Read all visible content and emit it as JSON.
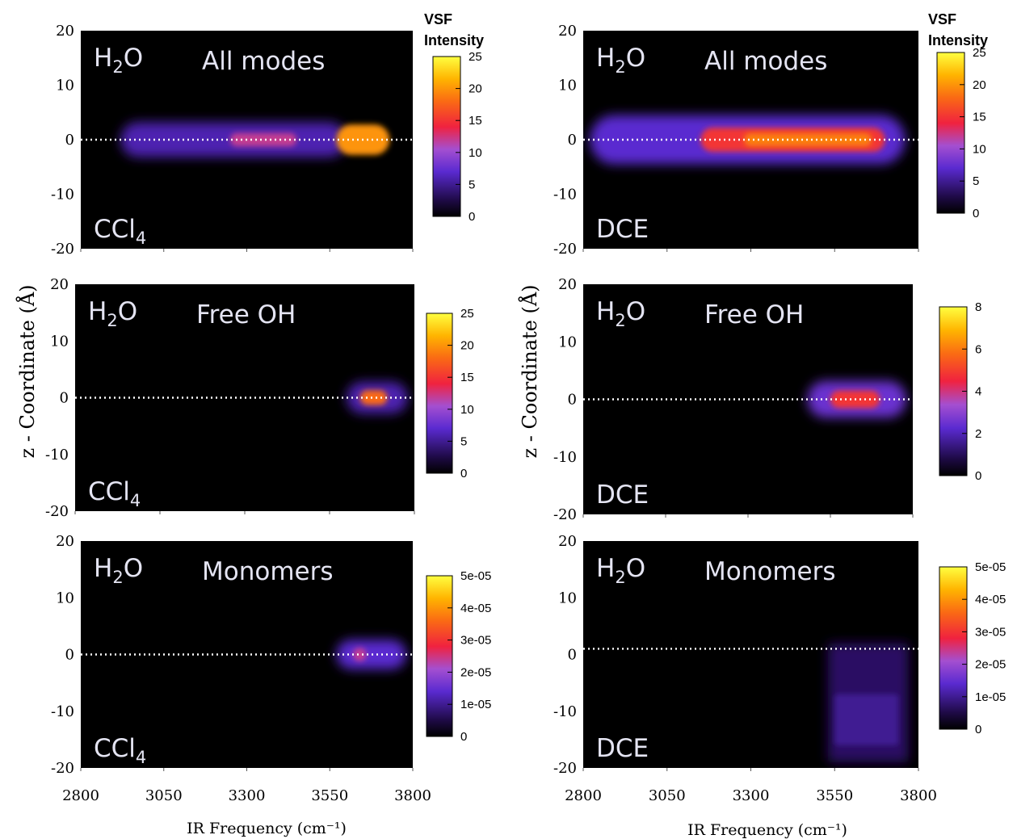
{
  "figure": {
    "colorbar_title_line1": "VSF",
    "colorbar_title_line2": "Intensity",
    "ylabel": "z - Coordinate (Å)",
    "xlabel": "IR Frequency (cm⁻¹)"
  },
  "chart_data": [
    {
      "type": "heatmap",
      "id": "ccl4-all",
      "solvent": "CCl4",
      "solvent_label": "CCl",
      "solvent_sub": "4",
      "species": "H",
      "species_sub": "2",
      "species_tail": "O",
      "mode": "All modes",
      "xlim": [
        2800,
        3800
      ],
      "ylim": [
        -20,
        20
      ],
      "xticks": [
        2800,
        3050,
        3300,
        3550,
        3800
      ],
      "yticks": [
        20,
        10,
        0,
        -10,
        -20
      ],
      "show_xticks": false,
      "interface_z": 0,
      "colorbar": {
        "min": 0,
        "max": 25,
        "ticks": [
          "25",
          "20",
          "15",
          "10",
          "5",
          "0"
        ],
        "show_title": true
      },
      "features": [
        {
          "x": [
            2920,
            3600
          ],
          "z_halfwidth": 3.2,
          "peak": 6
        },
        {
          "x": [
            3250,
            3450
          ],
          "z_halfwidth": 1.2,
          "peak": 12
        },
        {
          "x": [
            3570,
            3730
          ],
          "z_halfwidth": 2.8,
          "peak": 20
        }
      ]
    },
    {
      "type": "heatmap",
      "id": "dce-all",
      "solvent": "DCE",
      "solvent_label": "DCE",
      "solvent_sub": "",
      "species": "H",
      "species_sub": "2",
      "species_tail": "O",
      "mode": "All modes",
      "xlim": [
        2800,
        3800
      ],
      "ylim": [
        -20,
        20
      ],
      "xticks": [
        2800,
        3050,
        3300,
        3550,
        3800
      ],
      "yticks": [
        20,
        10,
        0,
        -10,
        -20
      ],
      "show_xticks": false,
      "interface_z": 0,
      "colorbar": {
        "min": 0,
        "max": 25,
        "ticks": [
          "25",
          "20",
          "15",
          "10",
          "5",
          "0"
        ],
        "show_title": true
      },
      "features": [
        {
          "x": [
            2820,
            3760
          ],
          "z_halfwidth": 4.5,
          "peak": 7
        },
        {
          "x": [
            3150,
            3700
          ],
          "z_halfwidth": 2.2,
          "peak": 15
        },
        {
          "x": [
            3280,
            3660
          ],
          "z_halfwidth": 1.2,
          "peak": 19
        }
      ]
    },
    {
      "type": "heatmap",
      "id": "ccl4-free",
      "solvent": "CCl4",
      "solvent_label": "CCl",
      "solvent_sub": "4",
      "species": "H",
      "species_sub": "2",
      "species_tail": "O",
      "mode": "Free OH",
      "xlim": [
        2800,
        3800
      ],
      "ylim": [
        -20,
        20
      ],
      "xticks": [
        2800,
        3050,
        3300,
        3550,
        3800
      ],
      "yticks": [
        20,
        10,
        0,
        -10,
        -20
      ],
      "show_xticks": false,
      "interface_z": 0,
      "colorbar": {
        "min": 0,
        "max": 25,
        "ticks": [
          "25",
          "20",
          "15",
          "10",
          "5",
          "0"
        ],
        "show_title": false
      },
      "features": [
        {
          "x": [
            3600,
            3780
          ],
          "z_halfwidth": 2.8,
          "peak": 6
        },
        {
          "x": [
            3640,
            3720
          ],
          "z_halfwidth": 1.3,
          "peak": 18
        }
      ]
    },
    {
      "type": "heatmap",
      "id": "dce-free",
      "solvent": "DCE",
      "solvent_label": "DCE",
      "solvent_sub": "",
      "species": "H",
      "species_sub": "2",
      "species_tail": "O",
      "mode": "Free OH",
      "xlim": [
        2800,
        3800
      ],
      "ylim": [
        -20,
        20
      ],
      "xticks": [
        2800,
        3050,
        3300,
        3550,
        3800
      ],
      "yticks": [
        20,
        10,
        0,
        -10,
        -20
      ],
      "show_xticks": false,
      "interface_z": 0,
      "colorbar": {
        "min": 0,
        "max": 8,
        "ticks": [
          "8",
          "6",
          "4",
          "2",
          "0"
        ],
        "show_title": false
      },
      "features": [
        {
          "x": [
            3480,
            3780
          ],
          "z_halfwidth": 3.2,
          "peak": 2.5
        },
        {
          "x": [
            3550,
            3700
          ],
          "z_halfwidth": 1.5,
          "peak": 4.8
        }
      ]
    },
    {
      "type": "heatmap",
      "id": "ccl4-mono",
      "solvent": "CCl4",
      "solvent_label": "CCl",
      "solvent_sub": "4",
      "species": "H",
      "species_sub": "2",
      "species_tail": "O",
      "mode": "Monomers",
      "xlim": [
        2800,
        3800
      ],
      "ylim": [
        -20,
        20
      ],
      "xticks": [
        2800,
        3050,
        3300,
        3550,
        3800
      ],
      "yticks": [
        20,
        10,
        0,
        -10,
        -20
      ],
      "show_xticks": true,
      "interface_z": 0,
      "colorbar": {
        "min": 0,
        "max": 5e-05,
        "ticks": [
          "5e-05",
          "4e-05",
          "3e-05",
          "2e-05",
          "1e-05",
          "0"
        ],
        "show_title": false
      },
      "features": [
        {
          "x": [
            3570,
            3780
          ],
          "z_halfwidth": 2.6,
          "peak": 1.4e-05
        },
        {
          "x": [
            3620,
            3660
          ],
          "z_halfwidth": 1.2,
          "peak": 2.4e-05
        }
      ]
    },
    {
      "type": "heatmap",
      "id": "dce-mono",
      "solvent": "DCE",
      "solvent_label": "DCE",
      "solvent_sub": "",
      "species": "H",
      "species_sub": "2",
      "species_tail": "O",
      "mode": "Monomers",
      "xlim": [
        2800,
        3800
      ],
      "ylim": [
        -20,
        20
      ],
      "xticks": [
        2800,
        3050,
        3300,
        3550,
        3800
      ],
      "yticks": [
        20,
        10,
        0,
        -10,
        -20
      ],
      "show_xticks": true,
      "interface_z": 1,
      "colorbar": {
        "min": 0,
        "max": 5e-05,
        "ticks": [
          "5e-05",
          "4e-05",
          "3e-05",
          "2e-05",
          "1e-05",
          "0"
        ],
        "show_title": false
      },
      "features": [
        {
          "x": [
            3530,
            3770
          ],
          "z_range": [
            -19,
            2
          ],
          "peak": 7e-06
        },
        {
          "x": [
            3550,
            3740
          ],
          "z_range": [
            -16,
            -7
          ],
          "peak": 1e-05
        }
      ]
    }
  ]
}
